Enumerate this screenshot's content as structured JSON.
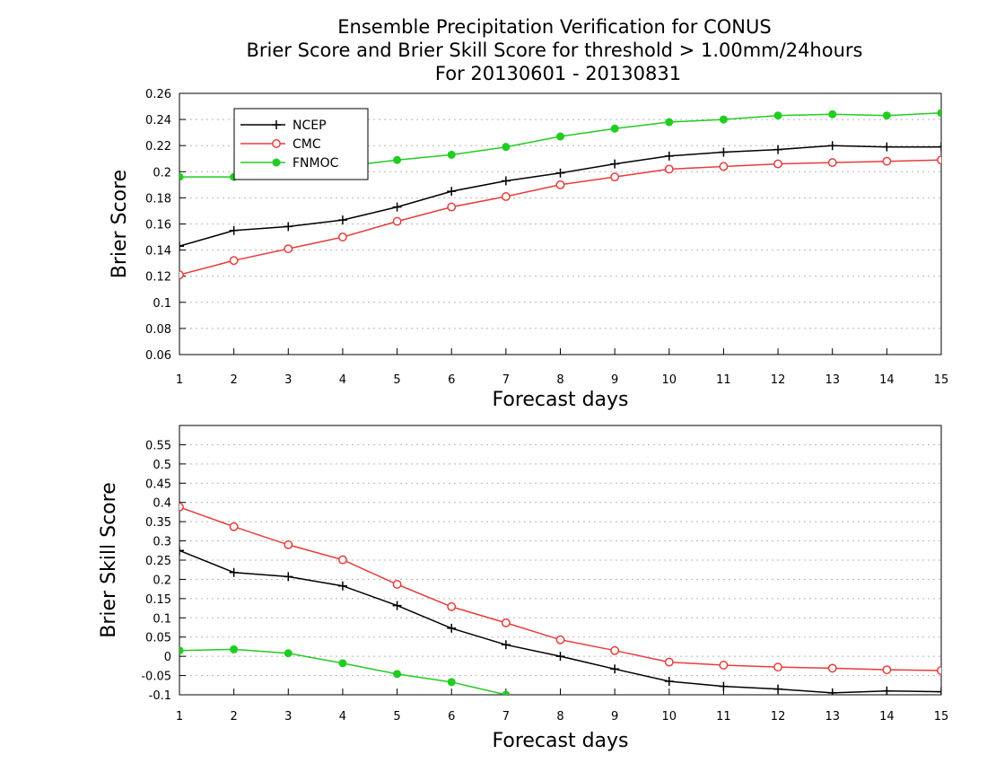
{
  "figure": {
    "title_lines": [
      "Ensemble Precipitation Verification for CONUS",
      "Brier Score and Brier Skill Score for threshold > 1.00mm/24hours",
      "For 20130601 - 20130831"
    ]
  },
  "chart_data": [
    {
      "type": "line",
      "xlabel": "Forecast days",
      "ylabel": "Brier Score",
      "x": [
        1,
        2,
        3,
        4,
        5,
        6,
        7,
        8,
        9,
        10,
        11,
        12,
        13,
        14,
        15
      ],
      "xlim": [
        1,
        15
      ],
      "ylim": [
        0.06,
        0.26
      ],
      "yticks": [
        0.06,
        0.08,
        0.1,
        0.12,
        0.14,
        0.16,
        0.18,
        0.2,
        0.22,
        0.24,
        0.26
      ],
      "ytick_labels": [
        "0.06",
        "0.08",
        "0.1",
        "0.12",
        "0.14",
        "0.16",
        "0.18",
        "0.2",
        "0.22",
        "0.24",
        "0.26"
      ],
      "grid": true,
      "legend_position": "top-left",
      "series": [
        {
          "name": "NCEP",
          "color": "#000000",
          "marker": "plus",
          "values": [
            0.143,
            0.155,
            0.158,
            0.163,
            0.173,
            0.185,
            0.193,
            0.199,
            0.206,
            0.212,
            0.215,
            0.217,
            0.22,
            0.219,
            0.219
          ]
        },
        {
          "name": "CMC",
          "color": "#e83c3c",
          "marker": "open-circle",
          "values": [
            0.121,
            0.132,
            0.141,
            0.15,
            0.162,
            0.173,
            0.181,
            0.19,
            0.196,
            0.202,
            0.204,
            0.206,
            0.207,
            0.208,
            0.209
          ]
        },
        {
          "name": "FNMOC",
          "color": "#22cc22",
          "marker": "filled-circle",
          "values": [
            0.196,
            0.196,
            0.2,
            0.204,
            0.209,
            0.213,
            0.219,
            0.227,
            0.233,
            0.238,
            0.24,
            0.243,
            0.244,
            0.243,
            0.245
          ]
        }
      ]
    },
    {
      "type": "line",
      "xlabel": "Forecast days",
      "ylabel": "Brier Skill Score",
      "x": [
        1,
        2,
        3,
        4,
        5,
        6,
        7,
        8,
        9,
        10,
        11,
        12,
        13,
        14,
        15
      ],
      "xlim": [
        1,
        15
      ],
      "ylim": [
        -0.1,
        0.6
      ],
      "yticks": [
        -0.1,
        -0.05,
        0,
        0.05,
        0.1,
        0.15,
        0.2,
        0.25,
        0.3,
        0.35,
        0.4,
        0.45,
        0.5,
        0.55
      ],
      "ytick_labels": [
        "-0.1",
        "-0.05",
        "0",
        "0.05",
        "0.1",
        "0.15",
        "0.2",
        "0.25",
        "0.3",
        "0.35",
        "0.4",
        "0.45",
        "0.5",
        "0.55"
      ],
      "grid": true,
      "series": [
        {
          "name": "NCEP",
          "color": "#000000",
          "marker": "plus",
          "values": [
            0.275,
            0.218,
            0.207,
            0.183,
            0.132,
            0.073,
            0.03,
            0.0,
            -0.033,
            -0.065,
            -0.078,
            -0.085,
            -0.095,
            -0.09,
            -0.092
          ]
        },
        {
          "name": "CMC",
          "color": "#e83c3c",
          "marker": "open-circle",
          "values": [
            0.388,
            0.337,
            0.29,
            0.251,
            0.187,
            0.129,
            0.087,
            0.043,
            0.015,
            -0.015,
            -0.023,
            -0.028,
            -0.031,
            -0.035,
            -0.037
          ]
        },
        {
          "name": "FNMOC",
          "color": "#22cc22",
          "marker": "filled-circle",
          "values": [
            0.015,
            0.018,
            0.008,
            -0.018,
            -0.046,
            -0.067,
            -0.1,
            null,
            null,
            null,
            null,
            null,
            null,
            null,
            null
          ]
        }
      ]
    }
  ]
}
